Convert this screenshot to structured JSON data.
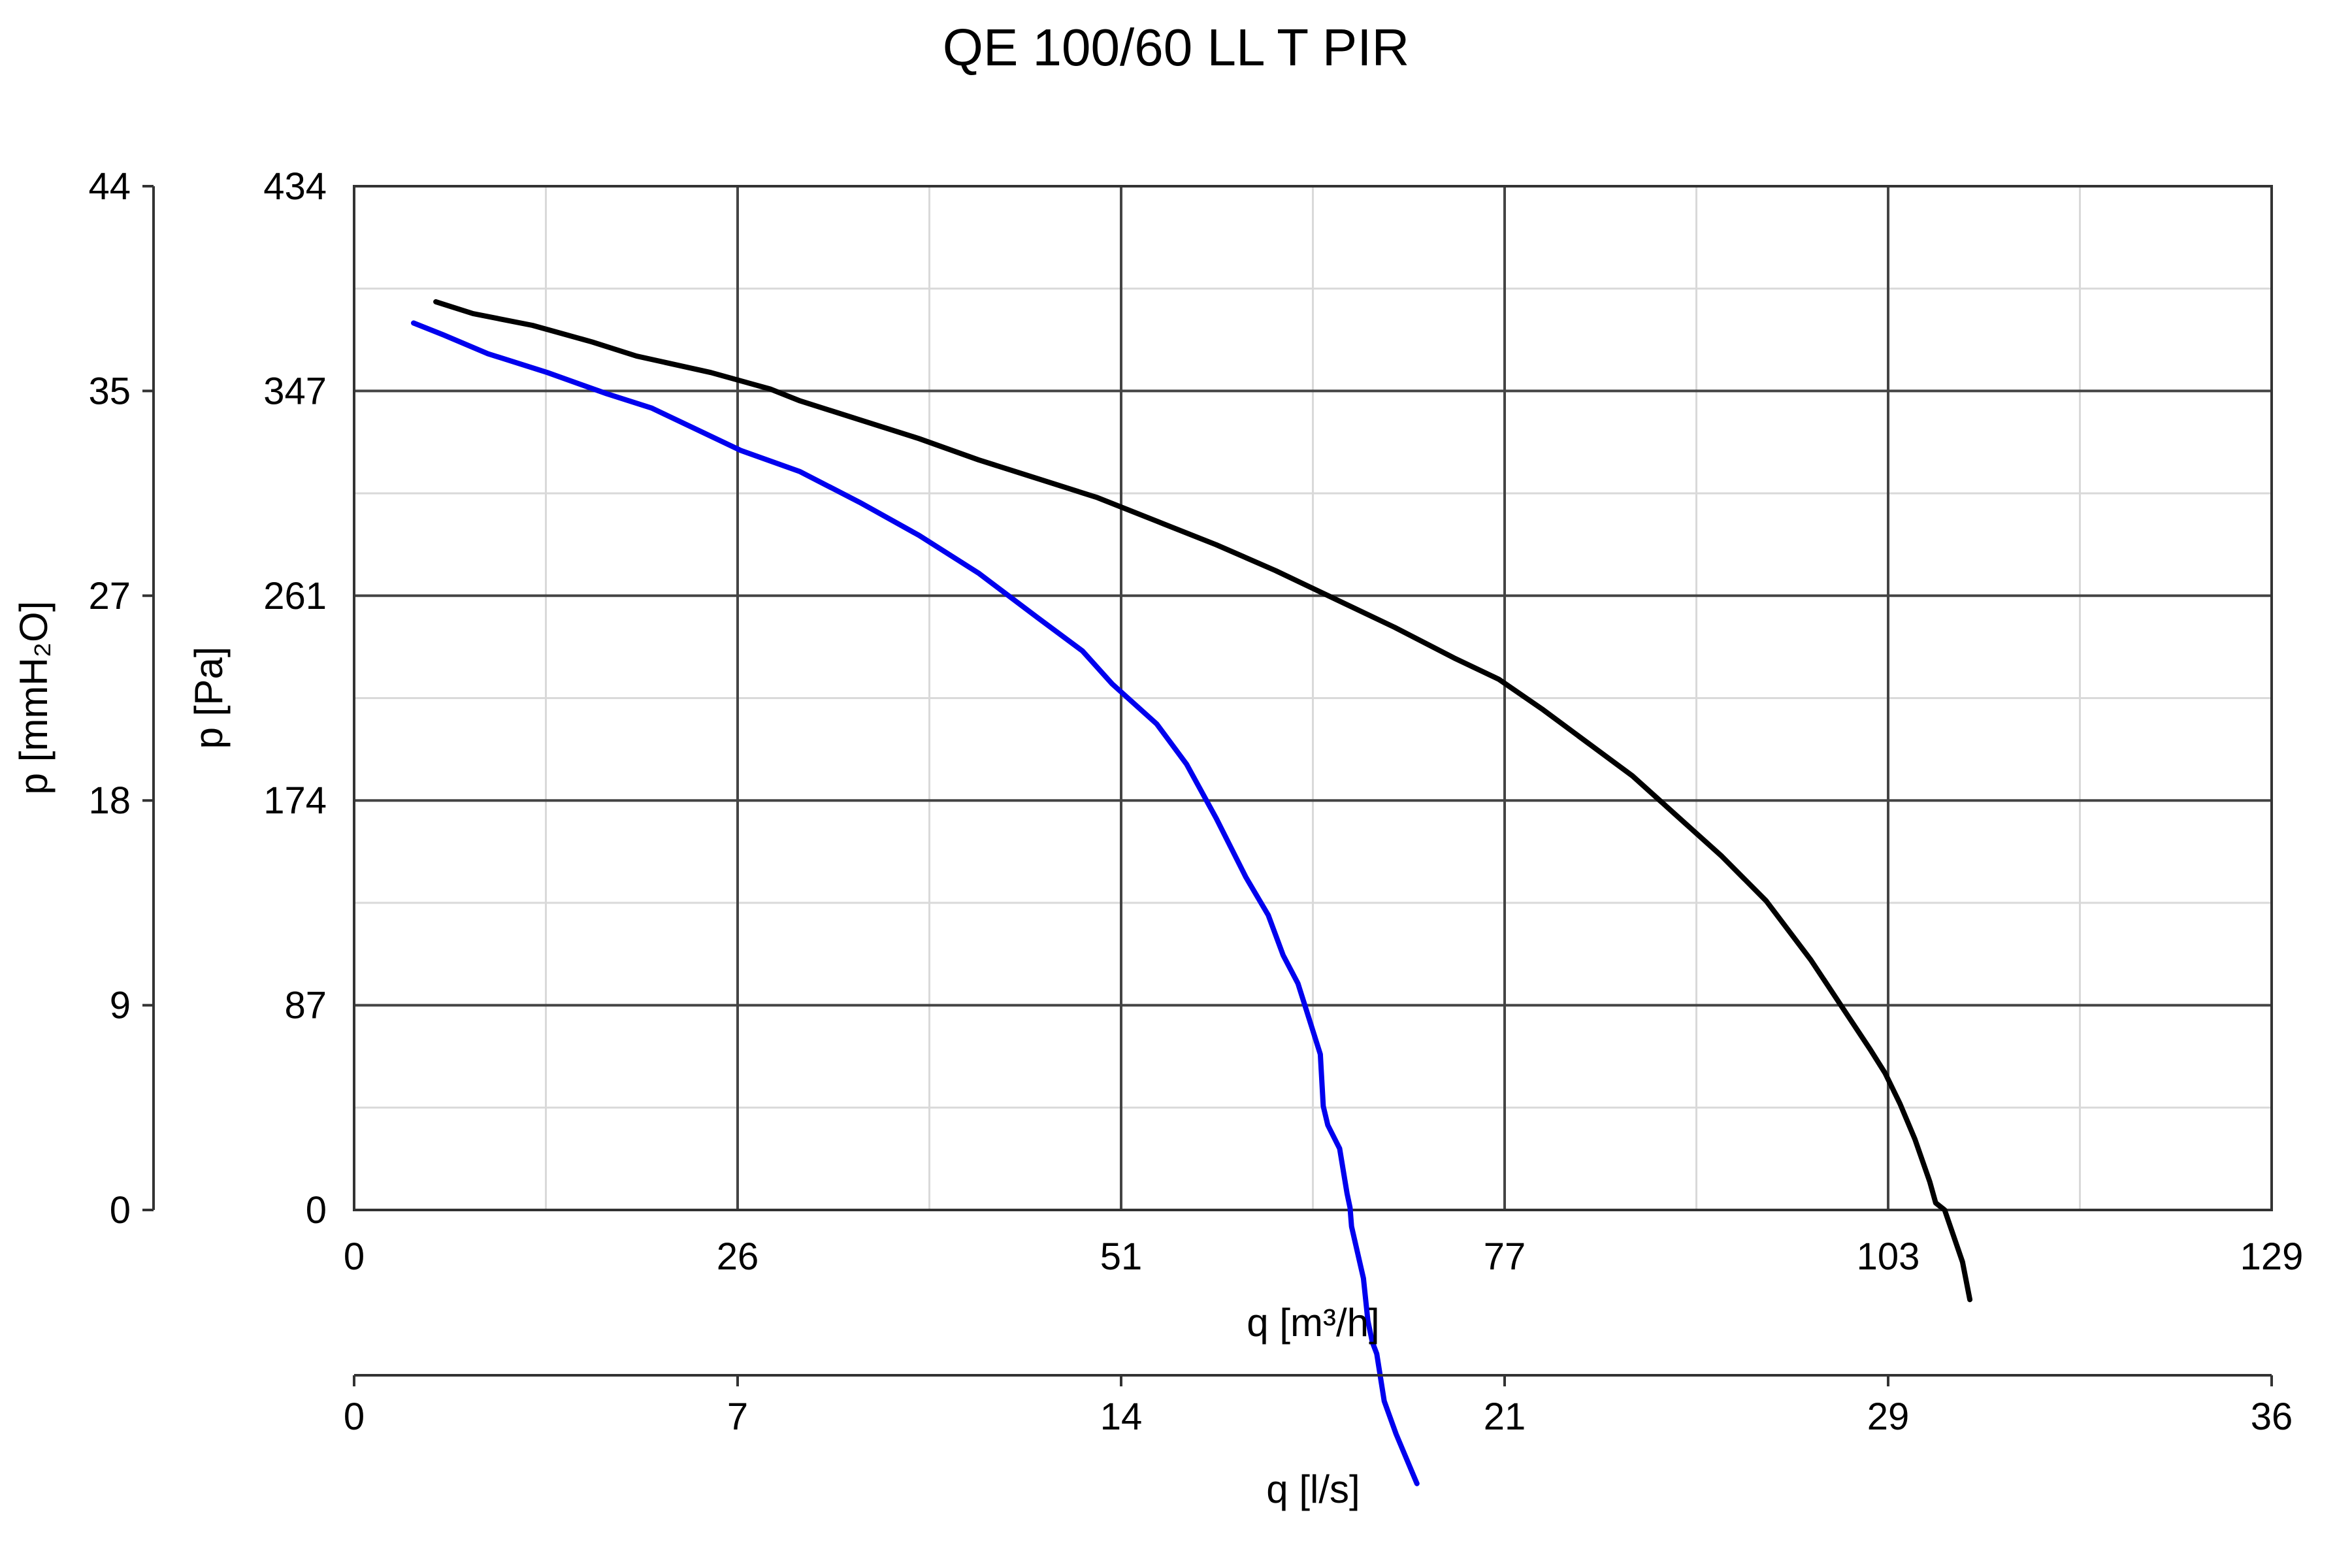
{
  "chart_data": {
    "type": "line",
    "title": "QE 100/60 LL T PIR",
    "xlabel": "q [m³/h]",
    "xlabel_secondary": "q [l/s]",
    "ylabel": "p [Pa]",
    "ylabel_secondary": "p [mmH₂O]",
    "xlim": [
      0,
      129
    ],
    "ylim": [
      0,
      434
    ],
    "grid": true,
    "x_ticks": [
      "0",
      "26",
      "51",
      "77",
      "103",
      "129"
    ],
    "x_ticks_secondary": [
      "0",
      "7",
      "14",
      "21",
      "29",
      "36"
    ],
    "y_ticks": [
      "0",
      "87",
      "174",
      "261",
      "347",
      "434"
    ],
    "y_ticks_secondary": [
      "0",
      "9",
      "18",
      "27",
      "35",
      "44"
    ],
    "series": [
      {
        "color": "#000000",
        "x": [
          5.5,
          8,
          12,
          16,
          19,
          24,
          28,
          30,
          34,
          38,
          42,
          46,
          50,
          54,
          58,
          62,
          66,
          70,
          74,
          77,
          80,
          83,
          86,
          89,
          92,
          95,
          98,
          100,
          102,
          103,
          104,
          105,
          106,
          106.4,
          107,
          108.2,
          108.7
        ],
        "y": [
          385,
          380,
          375,
          368,
          362,
          355,
          348,
          343,
          335,
          327,
          318,
          310,
          302,
          292,
          282,
          271,
          259,
          247,
          234,
          225,
          212,
          198,
          184,
          167,
          150,
          131,
          106,
          87,
          68,
          58,
          45,
          30,
          12,
          3,
          0,
          -22,
          -38
        ]
      },
      {
        "color": "#0000ee",
        "x": [
          4,
          6,
          9,
          13,
          17,
          20,
          23,
          26,
          30,
          34,
          38,
          42,
          46,
          49,
          51,
          54,
          56,
          58,
          60,
          61.5,
          62.5,
          63.5,
          64.5,
          65,
          65.2,
          65.5,
          66.3,
          66.8,
          67,
          67.1,
          67.5,
          67.9,
          68.2,
          68.5,
          68.8,
          69.3,
          70.1,
          71.5
        ],
        "y": [
          376,
          371,
          363,
          355,
          346,
          340,
          331,
          322,
          313,
          300,
          286,
          270,
          251,
          237,
          223,
          206,
          189,
          166,
          141,
          125,
          108,
          96,
          76,
          66,
          44,
          36,
          26,
          7,
          1,
          -7,
          -18,
          -29,
          -47,
          -56,
          -61,
          -81,
          -95,
          -116
        ]
      }
    ]
  }
}
